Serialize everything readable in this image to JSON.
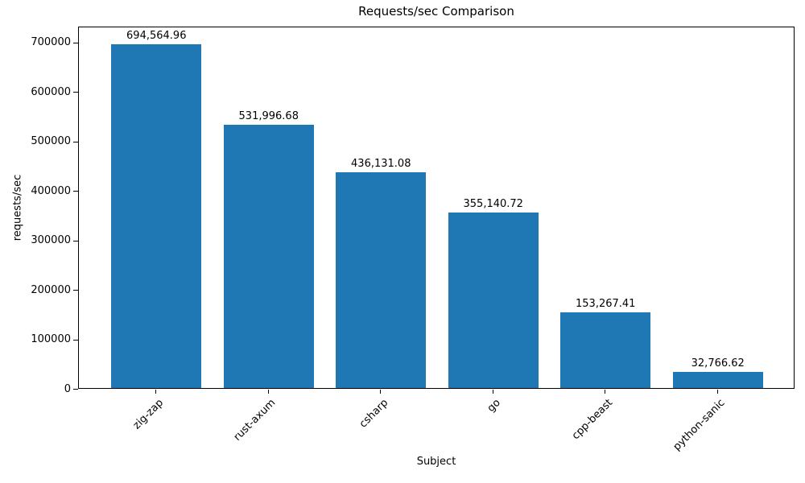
{
  "chart_data": {
    "type": "bar",
    "title": "Requests/sec Comparison",
    "xlabel": "Subject",
    "ylabel": "requests/sec",
    "categories": [
      "zig-zap",
      "rust-axum",
      "csharp",
      "go",
      "cpp-beast",
      "python-sanic"
    ],
    "values": [
      694564.96,
      531996.68,
      436131.08,
      355140.72,
      153267.41,
      32766.62
    ],
    "value_labels": [
      "694,564.96",
      "531,996.68",
      "436,131.08",
      "355,140.72",
      "153,267.41",
      "32,766.62"
    ],
    "yticks": [
      0,
      100000,
      200000,
      300000,
      400000,
      500000,
      600000,
      700000
    ],
    "ytick_labels": [
      "0",
      "100000",
      "200000",
      "300000",
      "400000",
      "500000",
      "600000",
      "700000"
    ],
    "ylim": [
      0,
      732558
    ],
    "grid": false,
    "legend_position": "none",
    "bar_color": "#1f77b4",
    "text_color": "#000000",
    "background_color": "#ffffff"
  }
}
